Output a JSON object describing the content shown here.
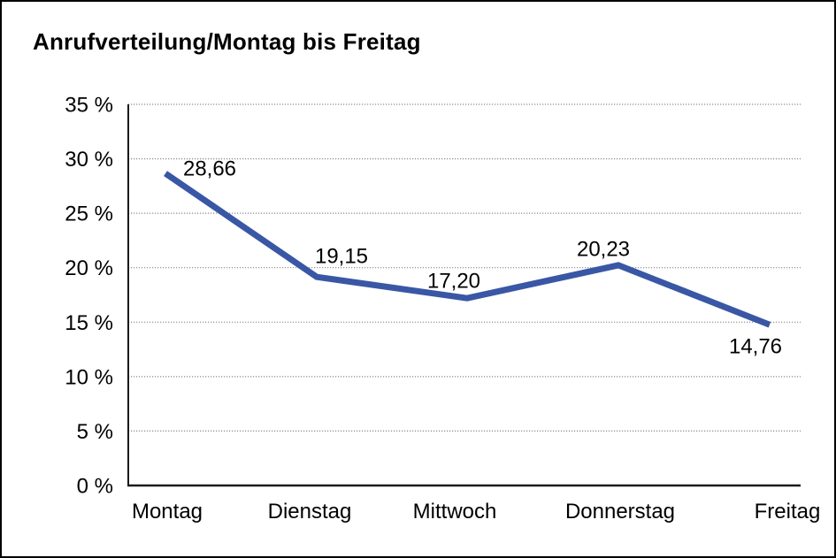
{
  "title": "Anrufverteilung/Montag bis Freitag",
  "colors": {
    "line": "#3a57a5",
    "grid": "#8a8a8a",
    "axis": "#1a1a1a",
    "text": "#000000",
    "background": "#ffffff",
    "border": "#000000"
  },
  "chart_data": {
    "type": "line",
    "title": "Anrufverteilung/Montag bis Freitag",
    "categories": [
      "Montag",
      "Dienstag",
      "Mittwoch",
      "Donnerstag",
      "Freitag"
    ],
    "values": [
      28.66,
      19.15,
      17.2,
      20.23,
      14.76
    ],
    "point_labels": [
      "28,66",
      "19,15",
      "17,20",
      "20,23",
      "14,76"
    ],
    "series_name": "Anrufverteilung",
    "xlabel": "",
    "ylabel": "",
    "ylim": [
      0,
      35
    ],
    "ytick_step": 5,
    "ytick_labels": [
      "0 %",
      "5 %",
      "10 %",
      "15 %",
      "20 %",
      "25 %",
      "30 %",
      "35 %"
    ],
    "grid": "horizontal-dotted",
    "legend": "none"
  }
}
